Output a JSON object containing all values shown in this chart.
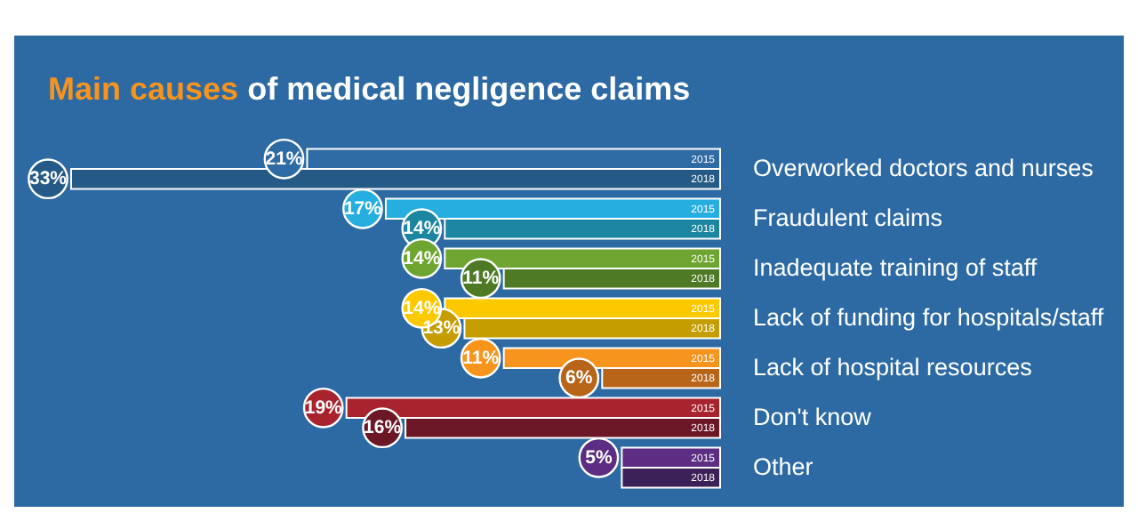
{
  "chart_data": {
    "type": "bar",
    "orientation": "horizontal",
    "title": "Main causes of medical negligence claims",
    "categories": [
      "Overworked doctors and nurses",
      "Fraudulent claims",
      "Inadequate training of staff",
      "Lack of funding for hospitals/staff",
      "Lack of hospital resources",
      "Don't know",
      "Other"
    ],
    "tick_labels": "y",
    "grid": false,
    "series": [
      {
        "name": "2015",
        "colors": [
          "#2e6aa3",
          "#27aee0",
          "#6ea531",
          "#fcc800",
          "#f7941d",
          "#a8232e",
          "#5c2d82"
        ],
        "values": [
          21,
          17,
          14,
          14,
          11,
          19,
          5
        ],
        "value_labels": [
          "21%",
          "17%",
          "14%",
          "14%",
          "11%",
          "19%",
          "5%"
        ]
      },
      {
        "name": "2018",
        "colors": [
          "#245a85",
          "#1c86a0",
          "#4e7a25",
          "#c59d00",
          "#b8651a",
          "#6b1726",
          "#3c2058"
        ],
        "values": [
          33,
          14,
          11,
          13,
          6,
          16,
          5
        ],
        "value_labels": [
          "33%",
          "14%",
          "11%",
          "13%",
          "6%",
          "16%",
          null
        ]
      }
    ]
  }
}
